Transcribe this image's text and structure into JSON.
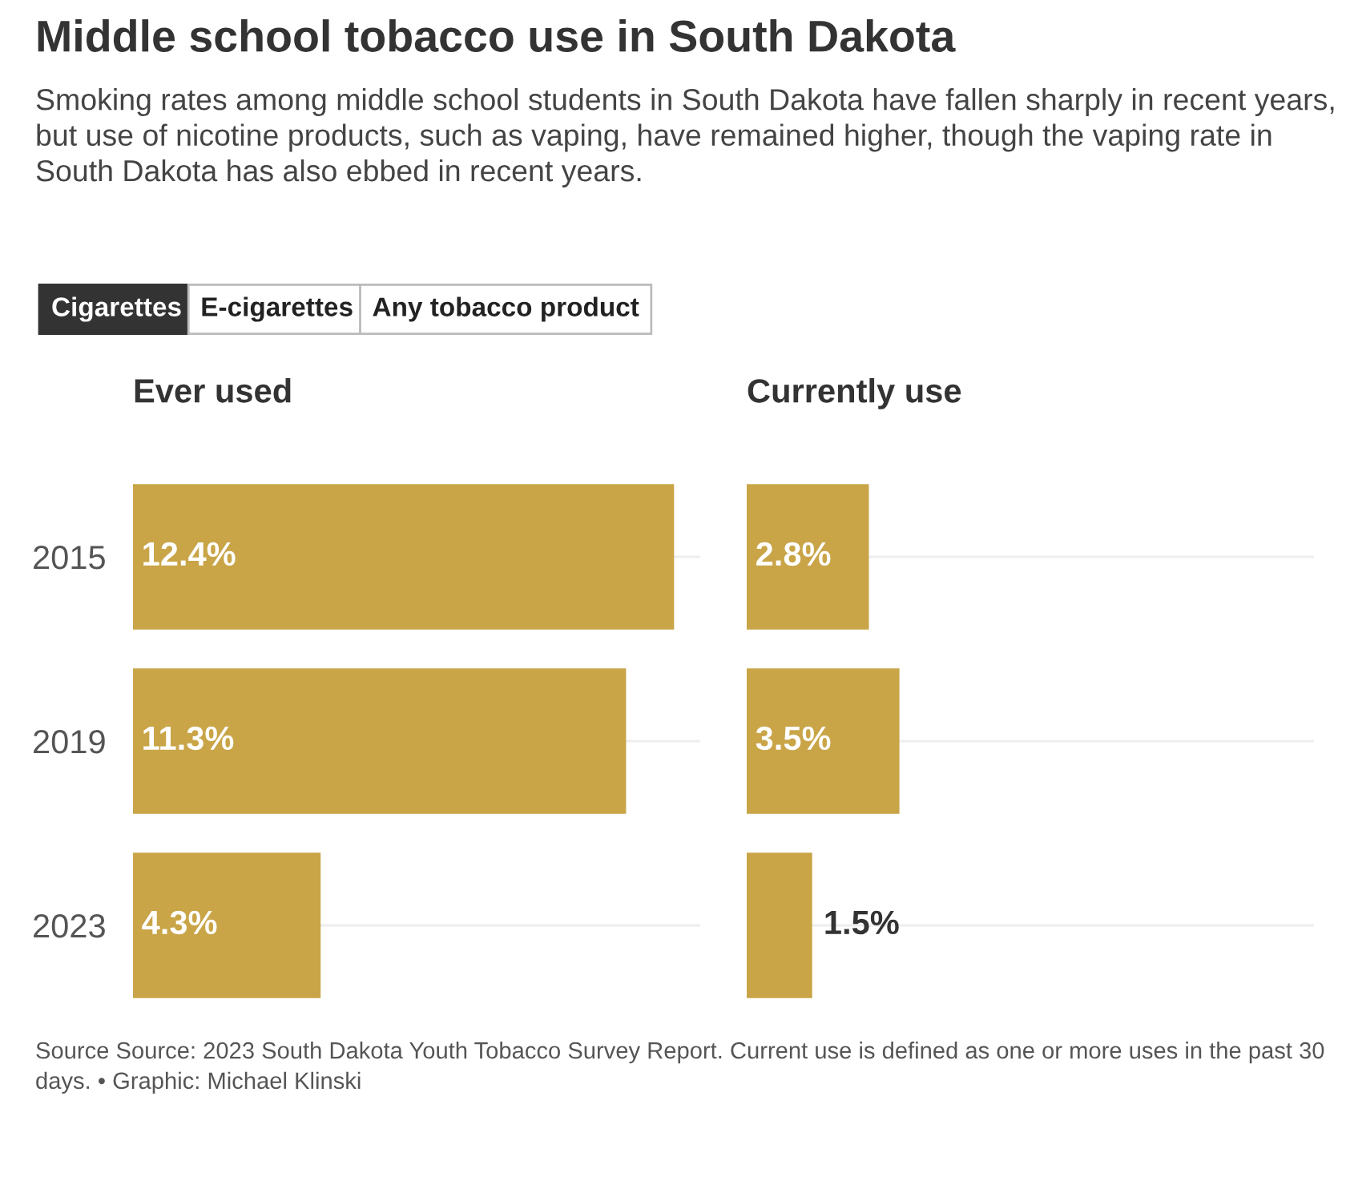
{
  "chart_data": [
    {
      "type": "other",
      "title": "Middle school tobacco use in South Dakota",
      "subtitle": "Smoking rates among middle school students in South Dakota have fallen sharply in recent years, but use of nicotine products, such as vaping, have remained higher, though the vaping rate in South Dakota has also ebbed in recent years.",
      "annotations": [
        "Cigarettes",
        "E-cigarettes",
        "Any tobacco product",
        "Source Source: 2023 South Dakota Youth Tobacco Survey Report. Current use is defined as one or more uses in the past 30 days. • Graphic: Michael Klinski"
      ]
    },
    {
      "type": "bar",
      "orientation": "horizontal",
      "title": "Ever used",
      "categories": [
        "2015",
        "2019",
        "2023"
      ],
      "values": [
        12.4,
        11.3,
        4.3
      ],
      "value_labels": [
        "12.4%",
        "11.3%",
        "4.3%"
      ],
      "color": "#c9a548",
      "xlim": [
        0,
        13
      ],
      "grid": "y",
      "tick_labels": "y"
    },
    {
      "type": "bar",
      "orientation": "horizontal",
      "title": "Currently use",
      "categories": [
        "2015",
        "2019",
        "2023"
      ],
      "values": [
        2.8,
        3.5,
        1.5
      ],
      "value_labels": [
        "2.8%",
        "3.5%",
        "1.5%"
      ],
      "color": "#c9a548",
      "xlim": [
        0,
        13
      ],
      "grid": "y",
      "tick_labels": false
    }
  ]
}
